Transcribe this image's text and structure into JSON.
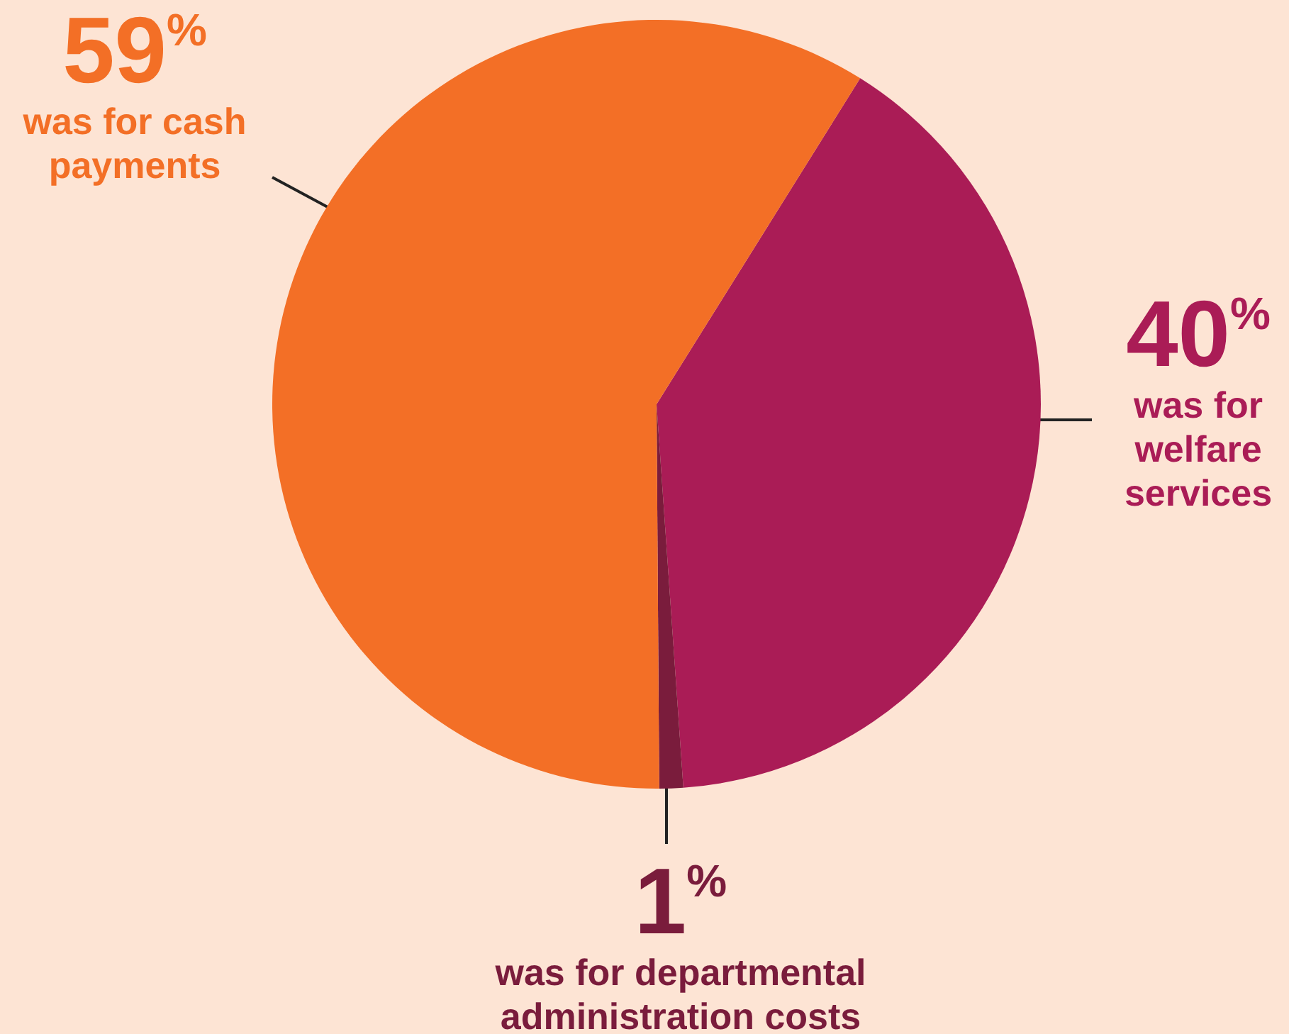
{
  "chart_data": {
    "type": "pie",
    "categories": [
      "was for welfare services",
      "was for departmental administration costs",
      "was for cash payments"
    ],
    "values": [
      40,
      1,
      59
    ],
    "colors": [
      "#aa1c56",
      "#7a1c3c",
      "#f36f26"
    ],
    "value_labels": [
      "40$^{%}$",
      "1$^{%}$",
      "59$^{%}$"
    ],
    "legend": false
  }
}
